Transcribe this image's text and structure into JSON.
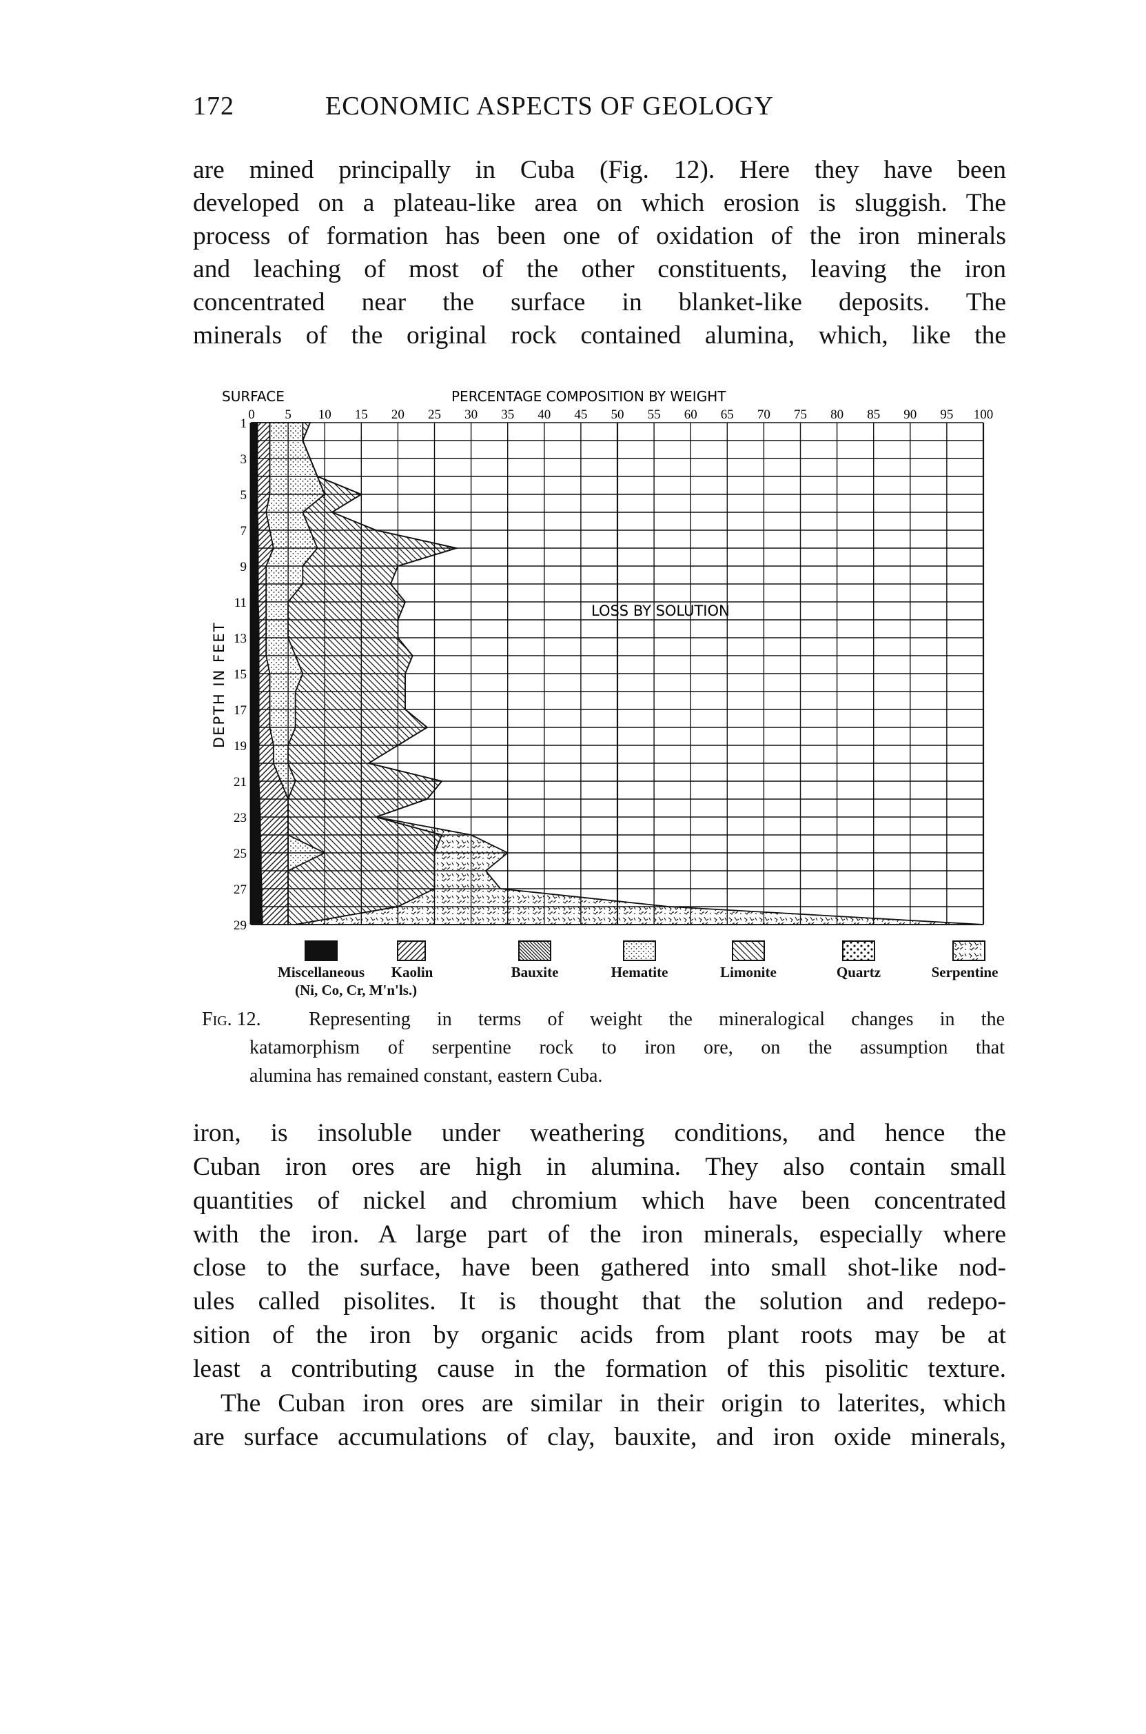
{
  "header": {
    "page_number": "172",
    "running_title": "ECONOMIC ASPECTS OF GEOLOGY"
  },
  "body_top": {
    "lines": [
      "are mined principally in Cuba (Fig. 12).  Here they have been",
      "developed on a plateau-like area on which erosion is sluggish.  The",
      "process of formation has been one of oxidation of the iron minerals",
      "and leaching of most of the other constituents, leaving the iron",
      "concentrated near the surface in blanket-like deposits.  The",
      "minerals of the original rock contained alumina, which, like the"
    ]
  },
  "figure": {
    "surface_label": "SURFACE",
    "loss_label": "LOSS BY SOLUTION",
    "legend": [
      {
        "label": "Miscellaneous",
        "sublabel": "(Ni, Co, Cr, M'n'ls.)",
        "pattern": "solid-black"
      },
      {
        "label": "Kaolin",
        "pattern": "wide-forward-hatch"
      },
      {
        "label": "Bauxite",
        "pattern": "dense-back-hatch"
      },
      {
        "label": "Hematite",
        "pattern": "fine-dots"
      },
      {
        "label": "Limonite",
        "pattern": "back-hatch"
      },
      {
        "label": "Quartz",
        "pattern": "coarse-dots"
      },
      {
        "label": "Serpentine",
        "pattern": "squiggles"
      }
    ],
    "caption": {
      "fig_label": "Fig. 12.",
      "lines": [
        "Representing in terms of weight the mineralogical changes in the",
        "katamorphism of serpentine rock to iron ore, on the assumption that",
        "alumina has remained constant, eastern Cuba."
      ]
    }
  },
  "chart_data": {
    "type": "area",
    "title": "PERCENTAGE COMPOSITION BY WEIGHT",
    "xlabel": "PERCENTAGE COMPOSITION BY WEIGHT",
    "ylabel": "DEPTH IN FEET",
    "xlim": [
      0,
      100
    ],
    "ylim": [
      1,
      29
    ],
    "y_inverted": true,
    "grid": true,
    "x_ticks": [
      "0",
      "5",
      "10",
      "15",
      "20",
      "25",
      "30",
      "35",
      "40",
      "45",
      "50",
      "55",
      "60",
      "65",
      "70",
      "75",
      "80",
      "85",
      "90",
      "95",
      "100"
    ],
    "y_ticks": [
      "1",
      "3",
      "5",
      "7",
      "9",
      "11",
      "13",
      "15",
      "17",
      "19",
      "21",
      "23",
      "25",
      "27",
      "29"
    ],
    "depths": [
      1,
      2,
      3,
      4,
      5,
      6,
      7,
      8,
      9,
      10,
      11,
      12,
      13,
      14,
      15,
      16,
      17,
      18,
      19,
      20,
      21,
      22,
      23,
      24,
      25,
      26,
      27,
      28,
      29
    ],
    "cumulative_right_edges": {
      "Miscellaneous": [
        0.8,
        0.8,
        0.8,
        0.8,
        0.8,
        0.8,
        0.9,
        0.9,
        0.9,
        0.9,
        0.9,
        1,
        1,
        1,
        1,
        1,
        1,
        1,
        1,
        1,
        1,
        1.1,
        1.2,
        1.2,
        1.3,
        1.3,
        1.4,
        1.4,
        1.5
      ],
      "Kaolin": [
        2.5,
        2.5,
        2.5,
        2.5,
        2.5,
        2,
        2.5,
        3,
        2,
        2,
        2,
        2,
        2,
        2,
        2.5,
        2.5,
        2.5,
        2.5,
        3,
        3,
        4,
        5,
        5,
        5,
        5,
        5,
        5,
        5,
        5
      ],
      "Hematite": [
        7,
        7,
        8,
        9,
        10,
        7,
        8,
        9,
        7,
        7,
        5,
        5,
        5,
        6,
        7,
        6,
        6,
        6,
        5,
        5,
        6,
        5,
        5,
        5,
        10,
        5,
        5,
        5,
        5
      ],
      "Limonite": [
        8,
        7,
        8,
        9,
        15,
        11,
        17,
        28,
        20,
        19,
        21,
        20,
        20,
        22,
        21,
        21,
        21,
        24,
        20,
        16,
        26,
        24,
        17,
        26,
        25,
        25,
        25,
        20,
        6
      ],
      "Serpentine": [
        8,
        7,
        8,
        9,
        15,
        11,
        17,
        28,
        20,
        19,
        21,
        20,
        20,
        22,
        21,
        21,
        21,
        24,
        20,
        16,
        26,
        24,
        17,
        30,
        35,
        32,
        34,
        57,
        100
      ]
    }
  },
  "body_bottom": {
    "paragraphs": [
      {
        "lines": [
          "iron, is insoluble under weathering conditions, and hence the",
          "Cuban iron ores are high in alumina.  They also contain small",
          "quantities of nickel and chromium which have been concentrated",
          "with the iron.  A large part of the iron minerals, especially where",
          "close to the surface, have been gathered into small shot-like nod-",
          "ules called pisolites.  It is thought that the solution and redepo-",
          "sition of the iron by organic acids from plant roots may be at",
          "least a contributing cause in the formation of this pisolitic texture."
        ]
      },
      {
        "lines": [
          "The Cuban iron ores are similar in their origin to laterites, which",
          "are surface accumulations of clay, bauxite, and iron oxide minerals,"
        ]
      }
    ]
  }
}
